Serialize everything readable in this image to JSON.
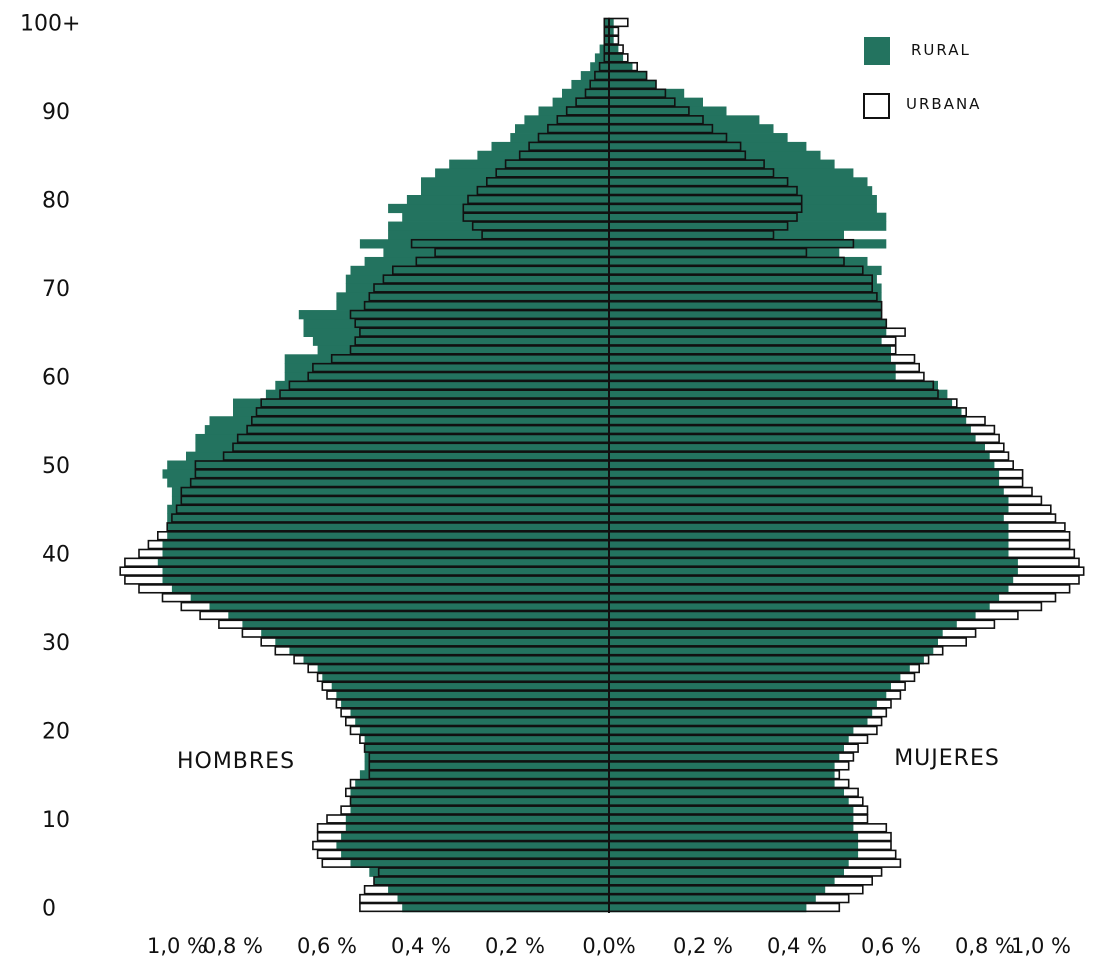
{
  "chart_data": {
    "type": "bar",
    "subtype": "population-pyramid",
    "ages": [
      0,
      1,
      2,
      3,
      4,
      5,
      6,
      7,
      8,
      9,
      10,
      11,
      12,
      13,
      14,
      15,
      16,
      17,
      18,
      19,
      20,
      21,
      22,
      23,
      24,
      25,
      26,
      27,
      28,
      29,
      30,
      31,
      32,
      33,
      34,
      35,
      36,
      37,
      38,
      39,
      40,
      41,
      42,
      43,
      44,
      45,
      46,
      47,
      48,
      49,
      50,
      51,
      52,
      53,
      54,
      55,
      56,
      57,
      58,
      59,
      60,
      61,
      62,
      63,
      64,
      65,
      66,
      67,
      68,
      69,
      70,
      71,
      72,
      73,
      74,
      75,
      76,
      77,
      78,
      79,
      80,
      81,
      82,
      83,
      84,
      85,
      86,
      87,
      88,
      89,
      90,
      91,
      92,
      93,
      94,
      95,
      96,
      97,
      98,
      99,
      100
    ],
    "y_tick_labels": [
      {
        "age": 0,
        "text": "0"
      },
      {
        "age": 10,
        "text": "10"
      },
      {
        "age": 20,
        "text": "20"
      },
      {
        "age": 30,
        "text": "30"
      },
      {
        "age": 40,
        "text": "40"
      },
      {
        "age": 50,
        "text": "50"
      },
      {
        "age": 60,
        "text": "60"
      },
      {
        "age": 70,
        "text": "70"
      },
      {
        "age": 80,
        "text": "80"
      },
      {
        "age": 90,
        "text": "90"
      },
      {
        "age": 100,
        "text": "100+"
      }
    ],
    "x_tick_labels": [
      {
        "value": -1.0,
        "text": "1,0 %"
      },
      {
        "value": -0.8,
        "text": "0,8 %"
      },
      {
        "value": -0.6,
        "text": "0,6 %"
      },
      {
        "value": -0.4,
        "text": "0,4 %"
      },
      {
        "value": -0.2,
        "text": "0,2 %"
      },
      {
        "value": 0.0,
        "text": "0,0%"
      },
      {
        "value": 0.2,
        "text": "0,2 %"
      },
      {
        "value": 0.4,
        "text": "0,4 %"
      },
      {
        "value": 0.6,
        "text": "0,6 %"
      },
      {
        "value": 0.8,
        "text": "0,8 %"
      },
      {
        "value": 1.0,
        "text": "1,0 %"
      }
    ],
    "xlim": [
      -1.0,
      1.0
    ],
    "side_labels": {
      "left": "HOMBRES",
      "right": "MUJERES"
    },
    "legend_position": "top-right",
    "series": [
      {
        "name": "RURAL",
        "style": "filled",
        "color": "#23735f",
        "male": [
          0.44,
          0.45,
          0.47,
          0.5,
          0.51,
          0.55,
          0.57,
          0.58,
          0.57,
          0.56,
          0.56,
          0.55,
          0.55,
          0.55,
          0.54,
          0.53,
          0.52,
          0.52,
          0.52,
          0.52,
          0.53,
          0.54,
          0.55,
          0.57,
          0.58,
          0.59,
          0.61,
          0.62,
          0.65,
          0.68,
          0.71,
          0.74,
          0.78,
          0.81,
          0.85,
          0.89,
          0.93,
          0.95,
          0.95,
          0.96,
          0.95,
          0.95,
          0.94,
          0.94,
          0.94,
          0.94,
          0.93,
          0.93,
          0.94,
          0.95,
          0.94,
          0.9,
          0.88,
          0.88,
          0.86,
          0.85,
          0.8,
          0.8,
          0.73,
          0.71,
          0.69,
          0.69,
          0.69,
          0.62,
          0.63,
          0.65,
          0.65,
          0.66,
          0.58,
          0.58,
          0.56,
          0.56,
          0.55,
          0.52,
          0.48,
          0.53,
          0.47,
          0.47,
          0.44,
          0.47,
          0.43,
          0.4,
          0.4,
          0.37,
          0.34,
          0.28,
          0.25,
          0.21,
          0.2,
          0.18,
          0.15,
          0.12,
          0.1,
          0.08,
          0.06,
          0.04,
          0.03,
          0.02,
          0.01,
          0.01,
          0.01
        ],
        "female": [
          0.42,
          0.44,
          0.46,
          0.48,
          0.5,
          0.51,
          0.53,
          0.53,
          0.53,
          0.52,
          0.52,
          0.52,
          0.51,
          0.5,
          0.48,
          0.48,
          0.48,
          0.49,
          0.5,
          0.51,
          0.52,
          0.55,
          0.56,
          0.57,
          0.59,
          0.6,
          0.62,
          0.64,
          0.67,
          0.69,
          0.7,
          0.71,
          0.74,
          0.78,
          0.81,
          0.83,
          0.85,
          0.86,
          0.87,
          0.87,
          0.85,
          0.85,
          0.85,
          0.85,
          0.84,
          0.85,
          0.85,
          0.84,
          0.83,
          0.83,
          0.82,
          0.81,
          0.8,
          0.78,
          0.77,
          0.76,
          0.75,
          0.73,
          0.72,
          0.7,
          0.61,
          0.61,
          0.6,
          0.6,
          0.58,
          0.59,
          0.59,
          0.58,
          0.58,
          0.58,
          0.58,
          0.57,
          0.58,
          0.55,
          0.49,
          0.59,
          0.5,
          0.59,
          0.59,
          0.57,
          0.57,
          0.56,
          0.55,
          0.52,
          0.48,
          0.45,
          0.42,
          0.38,
          0.35,
          0.32,
          0.25,
          0.2,
          0.16,
          0.1,
          0.08,
          0.05,
          0.03,
          0.02,
          0.01,
          0.01,
          0.01
        ]
      },
      {
        "name": "URBANA",
        "style": "outline",
        "color": "#000000",
        "male": [
          0.53,
          0.53,
          0.52,
          0.5,
          0.49,
          0.61,
          0.62,
          0.63,
          0.62,
          0.62,
          0.6,
          0.57,
          0.55,
          0.56,
          0.55,
          0.51,
          0.51,
          0.51,
          0.52,
          0.53,
          0.55,
          0.56,
          0.57,
          0.58,
          0.6,
          0.61,
          0.62,
          0.64,
          0.67,
          0.71,
          0.74,
          0.78,
          0.83,
          0.87,
          0.91,
          0.95,
          1.0,
          1.03,
          1.04,
          1.03,
          1.0,
          0.98,
          0.96,
          0.94,
          0.93,
          0.92,
          0.91,
          0.91,
          0.89,
          0.88,
          0.88,
          0.82,
          0.8,
          0.79,
          0.77,
          0.76,
          0.75,
          0.74,
          0.7,
          0.68,
          0.64,
          0.63,
          0.59,
          0.55,
          0.54,
          0.53,
          0.54,
          0.55,
          0.52,
          0.51,
          0.5,
          0.48,
          0.46,
          0.41,
          0.37,
          0.42,
          0.27,
          0.29,
          0.31,
          0.31,
          0.3,
          0.28,
          0.26,
          0.24,
          0.22,
          0.19,
          0.17,
          0.15,
          0.13,
          0.11,
          0.09,
          0.07,
          0.05,
          0.04,
          0.03,
          0.02,
          0.01,
          0.01,
          0.01,
          0.01,
          0.01
        ],
        "female": [
          0.49,
          0.51,
          0.54,
          0.56,
          0.58,
          0.62,
          0.61,
          0.6,
          0.6,
          0.59,
          0.55,
          0.55,
          0.54,
          0.53,
          0.51,
          0.49,
          0.51,
          0.52,
          0.53,
          0.55,
          0.57,
          0.58,
          0.59,
          0.6,
          0.62,
          0.63,
          0.65,
          0.66,
          0.68,
          0.71,
          0.76,
          0.78,
          0.82,
          0.87,
          0.92,
          0.95,
          0.98,
          1.0,
          1.01,
          1.0,
          0.99,
          0.98,
          0.98,
          0.97,
          0.95,
          0.94,
          0.92,
          0.9,
          0.88,
          0.88,
          0.86,
          0.85,
          0.84,
          0.83,
          0.82,
          0.8,
          0.76,
          0.74,
          0.7,
          0.69,
          0.67,
          0.66,
          0.65,
          0.61,
          0.61,
          0.63,
          0.59,
          0.58,
          0.58,
          0.57,
          0.56,
          0.56,
          0.54,
          0.5,
          0.42,
          0.52,
          0.35,
          0.38,
          0.4,
          0.41,
          0.41,
          0.4,
          0.38,
          0.35,
          0.33,
          0.29,
          0.28,
          0.25,
          0.22,
          0.2,
          0.17,
          0.14,
          0.12,
          0.1,
          0.08,
          0.06,
          0.04,
          0.03,
          0.02,
          0.02,
          0.04
        ]
      }
    ]
  }
}
